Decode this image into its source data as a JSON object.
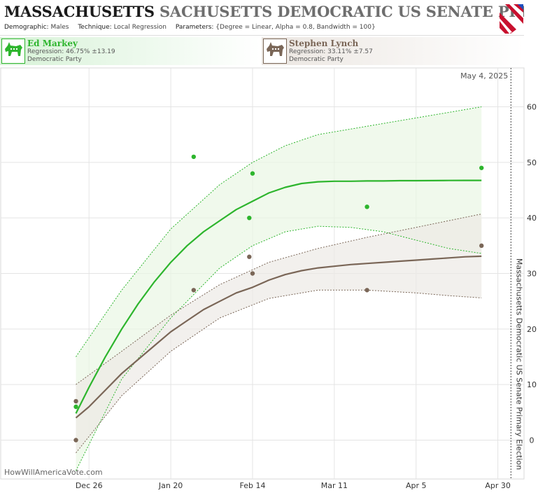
{
  "header": {
    "title_bold": "MASSACHUSETTS",
    "title_gray": "SACHUSETTS DEMOCRATIC US SENATE PRIM",
    "demographic_label": "Demographic:",
    "demographic": "Males",
    "technique_label": "Technique:",
    "technique": "Local Regression",
    "parameters_label": "Parameters:",
    "parameters": "{Degree = Linear, Alpha = 0.8, Bandwidth = 100}"
  },
  "candidates": [
    {
      "name": "Ed Markey",
      "regression": "Regression: 46.75% ±13.19",
      "party": "Democratic Party",
      "color": "#2db52d"
    },
    {
      "name": "Stephen Lynch",
      "regression": "Regression: 33.11% ±7.57",
      "party": "Democratic Party",
      "color": "#7a6657"
    }
  ],
  "watermark": "HowWillAmericaVote.com",
  "chart_data": {
    "type": "scatter",
    "title": "",
    "election_date_label": "May 4, 2025",
    "side_label": "Massachusetts Democratic US Senate Primary Election",
    "xlabel": "",
    "ylabel": "",
    "x_ticks": [
      {
        "day": 0,
        "label": "Dec 26"
      },
      {
        "day": 25,
        "label": "Jan 20"
      },
      {
        "day": 50,
        "label": "Feb 14"
      },
      {
        "day": 75,
        "label": "Mar 11"
      },
      {
        "day": 100,
        "label": "Apr 5"
      },
      {
        "day": 125,
        "label": "Apr 30"
      }
    ],
    "xlim": [
      -27,
      133
    ],
    "ylim": [
      -7,
      67
    ],
    "y_ticks": [
      0,
      10,
      20,
      30,
      40,
      50,
      60
    ],
    "grid": true,
    "election_day": 129,
    "series": [
      {
        "name": "Ed Markey",
        "color": "#2db52d",
        "points": [
          [
            -4,
            6
          ],
          [
            32,
            51
          ],
          [
            49,
            40
          ],
          [
            50,
            48
          ],
          [
            85,
            42
          ],
          [
            120,
            49
          ]
        ],
        "trend": [
          [
            -4,
            4.8
          ],
          [
            0,
            9.5
          ],
          [
            5,
            15
          ],
          [
            10,
            20
          ],
          [
            15,
            24.5
          ],
          [
            20,
            28.5
          ],
          [
            25,
            32
          ],
          [
            30,
            35
          ],
          [
            35,
            37.5
          ],
          [
            40,
            39.5
          ],
          [
            45,
            41.5
          ],
          [
            50,
            43
          ],
          [
            55,
            44.5
          ],
          [
            60,
            45.5
          ],
          [
            65,
            46.2
          ],
          [
            70,
            46.5
          ],
          [
            75,
            46.6
          ],
          [
            80,
            46.6
          ],
          [
            85,
            46.65
          ],
          [
            90,
            46.65
          ],
          [
            95,
            46.7
          ],
          [
            100,
            46.7
          ],
          [
            105,
            46.72
          ],
          [
            110,
            46.74
          ],
          [
            115,
            46.75
          ],
          [
            120,
            46.75
          ]
        ],
        "upper": [
          [
            -4,
            15
          ],
          [
            10,
            27
          ],
          [
            25,
            38
          ],
          [
            40,
            46
          ],
          [
            50,
            50
          ],
          [
            60,
            53
          ],
          [
            70,
            55
          ],
          [
            80,
            56
          ],
          [
            90,
            57
          ],
          [
            100,
            58
          ],
          [
            110,
            59
          ],
          [
            120,
            60
          ]
        ],
        "lower": [
          [
            -4,
            -5.5
          ],
          [
            10,
            11
          ],
          [
            25,
            22
          ],
          [
            40,
            31
          ],
          [
            50,
            35
          ],
          [
            60,
            37.5
          ],
          [
            70,
            38.5
          ],
          [
            80,
            38.3
          ],
          [
            90,
            37.5
          ],
          [
            100,
            36
          ],
          [
            110,
            34.5
          ],
          [
            120,
            33.6
          ]
        ]
      },
      {
        "name": "Stephen Lynch",
        "color": "#7a6657",
        "points": [
          [
            -4,
            7
          ],
          [
            -4,
            0
          ],
          [
            32,
            27
          ],
          [
            49,
            33
          ],
          [
            50,
            30
          ],
          [
            85,
            27
          ],
          [
            120,
            35
          ]
        ],
        "trend": [
          [
            -4,
            4
          ],
          [
            0,
            6
          ],
          [
            5,
            9
          ],
          [
            10,
            12
          ],
          [
            15,
            14.5
          ],
          [
            20,
            17
          ],
          [
            25,
            19.5
          ],
          [
            30,
            21.5
          ],
          [
            35,
            23.5
          ],
          [
            40,
            25
          ],
          [
            45,
            26.5
          ],
          [
            50,
            27.5
          ],
          [
            55,
            28.8
          ],
          [
            60,
            29.8
          ],
          [
            65,
            30.5
          ],
          [
            70,
            31
          ],
          [
            75,
            31.3
          ],
          [
            80,
            31.6
          ],
          [
            85,
            31.8
          ],
          [
            90,
            32
          ],
          [
            95,
            32.2
          ],
          [
            100,
            32.4
          ],
          [
            105,
            32.6
          ],
          [
            110,
            32.8
          ],
          [
            115,
            33
          ],
          [
            120,
            33.1
          ]
        ],
        "upper": [
          [
            -4,
            10
          ],
          [
            10,
            16
          ],
          [
            25,
            22.5
          ],
          [
            40,
            28
          ],
          [
            55,
            32
          ],
          [
            70,
            34.5
          ],
          [
            85,
            36.5
          ],
          [
            100,
            38.3
          ],
          [
            110,
            39.5
          ],
          [
            120,
            40.7
          ]
        ],
        "lower": [
          [
            -4,
            -2.3
          ],
          [
            10,
            8
          ],
          [
            25,
            16
          ],
          [
            40,
            22
          ],
          [
            55,
            25.5
          ],
          [
            70,
            27
          ],
          [
            85,
            27
          ],
          [
            100,
            26.5
          ],
          [
            110,
            26
          ],
          [
            120,
            25.6
          ]
        ]
      }
    ]
  }
}
